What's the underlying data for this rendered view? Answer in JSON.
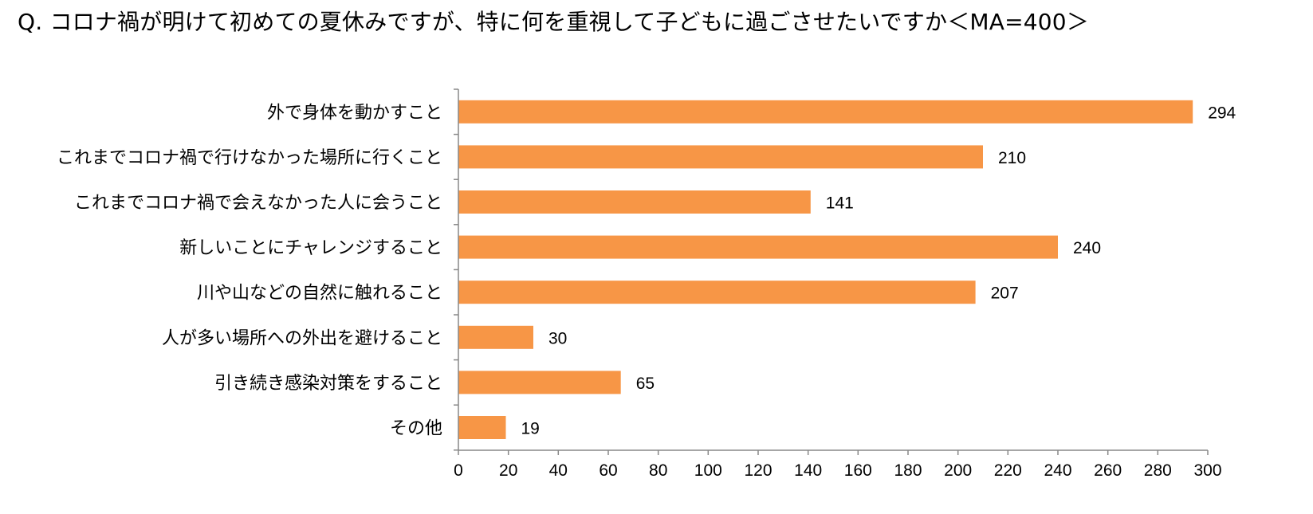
{
  "chart_data": {
    "type": "bar",
    "orientation": "horizontal",
    "title": "Q. コロナ禍が明けて初めての夏休みですが、特に何を重視して子どもに過ごさせたいですか＜MA=400＞",
    "categories": [
      "外で身体を動かすこと",
      "これまでコロナ禍で行けなかった場所に行くこと",
      "これまでコロナ禍で会えなかった人に会うこと",
      "新しいことにチャレンジすること",
      "川や山などの自然に触れること",
      "人が多い場所への外出を避けること",
      "引き続き感染対策をすること",
      "その他"
    ],
    "values": [
      294,
      210,
      141,
      240,
      207,
      30,
      65,
      19
    ],
    "xlim": [
      0,
      300
    ],
    "x_ticks": [
      0,
      20,
      40,
      60,
      80,
      100,
      120,
      140,
      160,
      180,
      200,
      220,
      240,
      260,
      280,
      300
    ],
    "xlabel": "",
    "ylabel": "",
    "grid": false,
    "data_labels": true,
    "bar_color": "#F79646"
  }
}
